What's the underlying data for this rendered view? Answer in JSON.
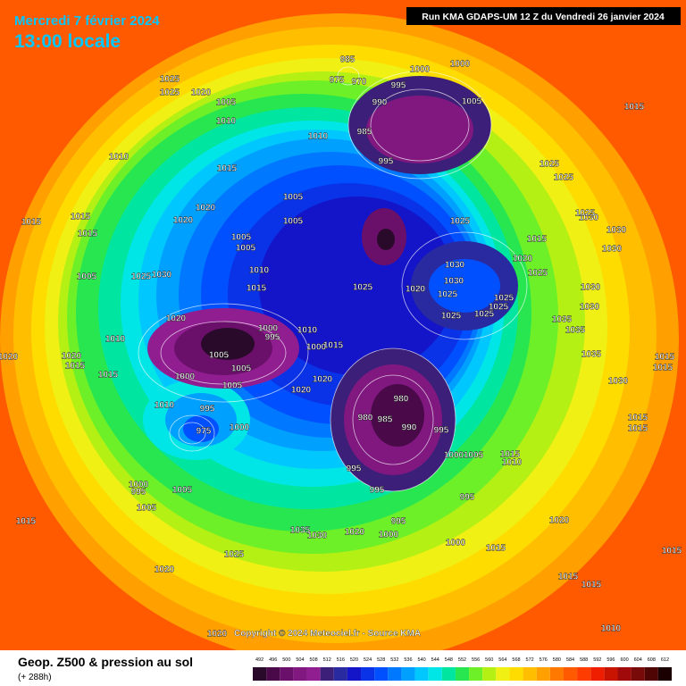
{
  "header": {
    "date": "Mercredi 7 février 2024",
    "time": "13:00 locale",
    "run": "Run KMA GDAPS-UM 12 Z du Vendredi 26 janvier 2024"
  },
  "footer": {
    "title": "Geop. Z500 & pression au sol",
    "lead": "(+ 288h)",
    "copyright": "Copyright © 2024 Meteociel.fr - Source KMA"
  },
  "legend": {
    "levels": [
      492,
      496,
      500,
      504,
      508,
      512,
      516,
      520,
      524,
      528,
      532,
      536,
      540,
      544,
      548,
      552,
      556,
      560,
      564,
      568,
      572,
      576,
      580,
      584,
      588,
      592,
      596,
      600,
      604,
      608,
      612
    ],
    "colors": [
      "#2a0a2a",
      "#4a0a4a",
      "#6a106a",
      "#801880",
      "#901e90",
      "#3c1f78",
      "#2a2aa0",
      "#1414c8",
      "#0a32e6",
      "#0050ff",
      "#0078ff",
      "#00a0ff",
      "#00c8ff",
      "#00e6e6",
      "#00e6a0",
      "#28e650",
      "#6ef028",
      "#b4f014",
      "#f0f014",
      "#ffdc00",
      "#ffbe00",
      "#ffa000",
      "#ff7800",
      "#ff5a00",
      "#ff3c00",
      "#f01e00",
      "#c81400",
      "#a00a0a",
      "#780a0a",
      "#500505",
      "#1a0000"
    ]
  },
  "isobar_labels": [
    "1025",
    "1025",
    "1020",
    "1005",
    "1010",
    "1010",
    "1015",
    "1015",
    "1015",
    "1015",
    "1020",
    "1020",
    "1005",
    "1005",
    "1005",
    "1005",
    "1010",
    "1015",
    "1025",
    "1030",
    "1005",
    "1010",
    "1020",
    "1005",
    "1005",
    "1000",
    "1005",
    "1000",
    "995",
    "1010",
    "1015",
    "1000",
    "1010",
    "995",
    "1000",
    "975",
    "1000",
    "995",
    "1005",
    "1005",
    "1015",
    "1020",
    "1025",
    "1035",
    "1030",
    "1020",
    "1000",
    "995",
    "1000",
    "1015",
    "1020",
    "1015",
    "1015",
    "1015",
    "1010",
    "995",
    "1005",
    "1000",
    "995",
    "990",
    "985",
    "980",
    "980",
    "995",
    "995",
    "1020",
    "1020",
    "1025",
    "1020",
    "1030",
    "1030",
    "1025",
    "1025",
    "1025",
    "1025",
    "1025",
    "1025",
    "1020",
    "1015",
    "1025",
    "1030",
    "1030",
    "1030",
    "1030",
    "1030",
    "1035",
    "1035",
    "1035",
    "1030",
    "1025",
    "1025",
    "1025",
    "1015",
    "1015",
    "1015",
    "1015",
    "1015",
    "1015",
    "1010",
    "1000",
    "1000",
    "1005",
    "995",
    "990",
    "985",
    "995",
    "985",
    "975",
    "970",
    "1010",
    "1020",
    "1020",
    "1015",
    "1015",
    "1020"
  ]
}
